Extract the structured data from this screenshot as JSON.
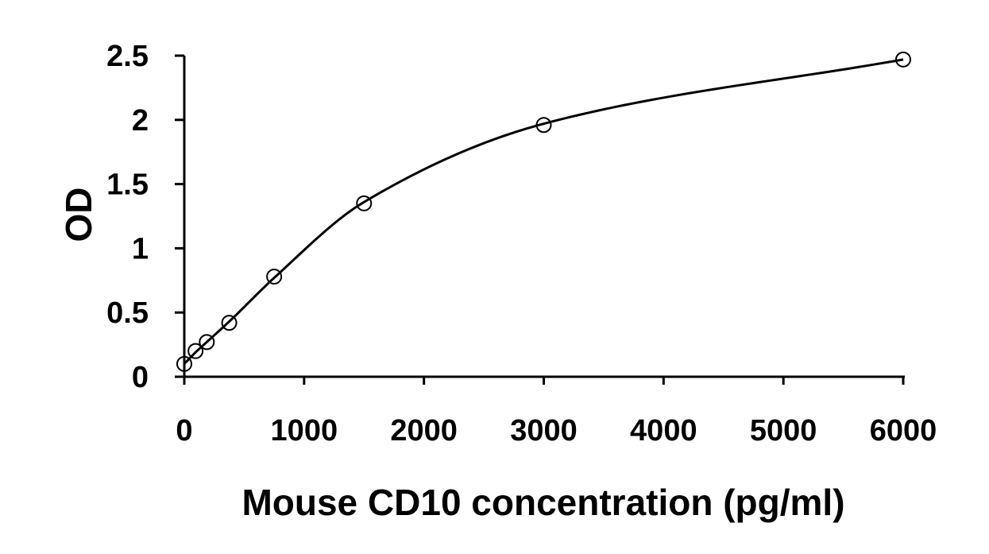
{
  "chart_data": {
    "type": "scatter",
    "title": "",
    "xlabel": "Mouse CD10 concentration (pg/ml)",
    "ylabel": "OD",
    "xlim": [
      0,
      6000
    ],
    "ylim": [
      0,
      2.5
    ],
    "x_ticks": [
      0,
      1000,
      2000,
      3000,
      4000,
      5000,
      6000
    ],
    "y_ticks": [
      0,
      0.5,
      1,
      1.5,
      2,
      2.5
    ],
    "x_tick_labels": [
      "0",
      "1000",
      "2000",
      "3000",
      "4000",
      "5000",
      "6000"
    ],
    "y_tick_labels": [
      "0",
      "0.5",
      "1",
      "1.5",
      "2",
      "2.5"
    ],
    "grid": false,
    "legend": "none",
    "series": [
      {
        "marker": "open-circle",
        "x": [
          0,
          93.75,
          187.5,
          375,
          750,
          1500,
          3000,
          6000
        ],
        "y": [
          0.1,
          0.2,
          0.27,
          0.42,
          0.78,
          1.35,
          1.96,
          2.47
        ]
      }
    ],
    "fit_curve": {
      "style": "smooth-line",
      "x": [
        0,
        93.75,
        187.5,
        375,
        750,
        1500,
        3000,
        6000
      ],
      "y": [
        0.1,
        0.19,
        0.27,
        0.43,
        0.77,
        1.36,
        1.97,
        2.47
      ]
    }
  },
  "colors": {
    "background": "#ffffff",
    "ink": "#000000"
  }
}
